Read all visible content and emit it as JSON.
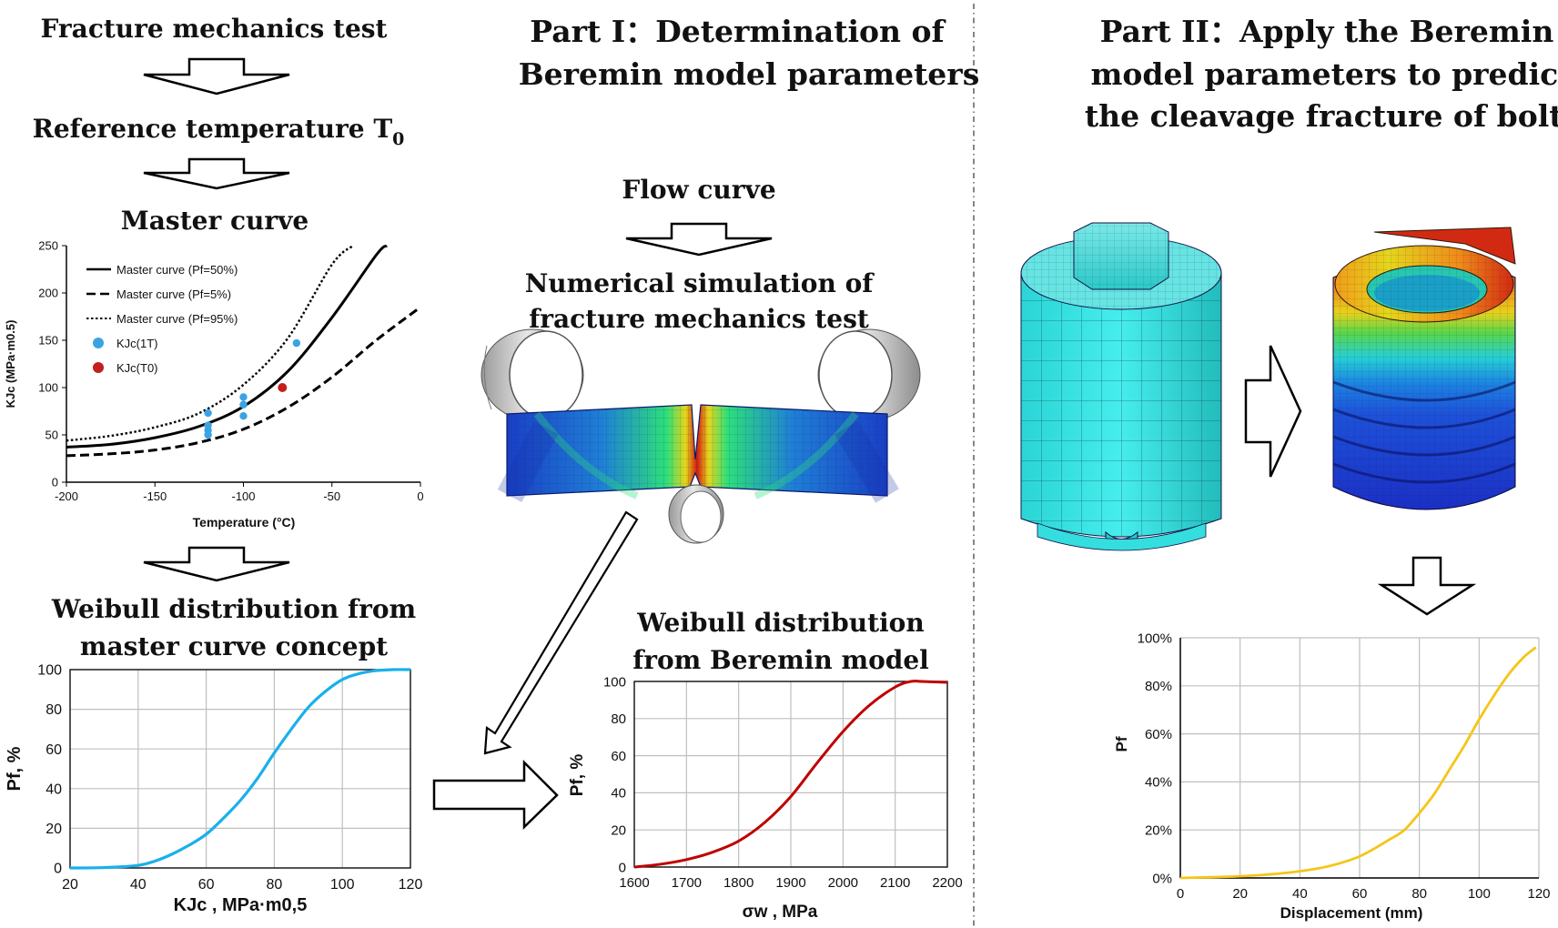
{
  "part1": {
    "title_line1": "Part I：Determination of",
    "title_line2": "Beremin model parameters"
  },
  "part2": {
    "title_line1": "Part II：Apply the Beremin",
    "title_line2": "model parameters to predict",
    "title_line3": "the cleavage fracture of bolts"
  },
  "left_flow": {
    "step1": "Fracture mechanics test",
    "step2_main": "Reference temperature T",
    "step2_sub": "0",
    "step3": "Master curve",
    "step4_line1": "Weibull distribution from",
    "step4_line2": "master curve concept"
  },
  "middle_flow": {
    "step1": "Flow curve",
    "step2_line1": "Numerical simulation of",
    "step2_line2": "fracture mechanics test",
    "step3_line1": "Weibull distribution",
    "step3_line2": "from Beremin model"
  },
  "colors": {
    "weibull_master": "#1ab0ea",
    "weibull_beremin": "#c00000",
    "bolt_curve": "#f5c518",
    "kjc_1t": "#3aa4e3",
    "kjc_t0": "#c41e1e",
    "bolt_mesh": "#34e0e0"
  },
  "chart_data": [
    {
      "type": "line",
      "xlabel": "Temperature (°C)",
      "ylabel": "KJc (MPa·m0.5)",
      "xlim": [
        -200,
        0
      ],
      "ylim": [
        0,
        250
      ],
      "xticks": [
        "-200",
        "-150",
        "-100",
        "-50",
        "0"
      ],
      "yticks": [
        "0",
        "50",
        "100",
        "150",
        "200",
        "250"
      ],
      "legend": [
        "Master curve (Pf=50%)",
        "Master curve (Pf=5%)",
        "Master curve (Pf=95%)",
        "KJc(1T)",
        "KJc(T0)"
      ],
      "series": [
        {
          "name": "Master curve (Pf=50%)",
          "x": [
            -200,
            -175,
            -150,
            -125,
            -100,
            -75,
            -50,
            -25,
            -19
          ],
          "y": [
            37,
            40,
            47,
            59,
            80,
            117,
            174,
            240,
            250
          ]
        },
        {
          "name": "Master curve (Pf=5%)",
          "x": [
            -200,
            -175,
            -150,
            -125,
            -100,
            -75,
            -50,
            -25,
            0
          ],
          "y": [
            28,
            30,
            34,
            42,
            56,
            79,
            111,
            150,
            185
          ]
        },
        {
          "name": "Master curve (Pf=95%)",
          "x": [
            -200,
            -175,
            -150,
            -125,
            -100,
            -75,
            -50,
            -38
          ],
          "y": [
            44,
            49,
            58,
            73,
            103,
            152,
            230,
            250
          ]
        },
        {
          "name": "KJc(1T)",
          "x": [
            -120,
            -120,
            -120,
            -120,
            -100,
            -100,
            -100,
            -70
          ],
          "y": [
            73,
            60,
            55,
            50,
            90,
            82,
            70,
            147
          ]
        },
        {
          "name": "KJc(T0)",
          "x": [
            -78
          ],
          "y": [
            100
          ]
        }
      ]
    },
    {
      "type": "line",
      "xlabel": "KJc , MPa·m0,5",
      "ylabel": "Pf, %",
      "xlim": [
        20,
        120
      ],
      "ylim": [
        0,
        100
      ],
      "xticks": [
        "20",
        "40",
        "60",
        "80",
        "100",
        "120"
      ],
      "yticks": [
        "0",
        "20",
        "40",
        "60",
        "80",
        "100"
      ],
      "series": [
        {
          "x": [
            20,
            30,
            40,
            45,
            50,
            55,
            60,
            65,
            70,
            75,
            80,
            85,
            90,
            95,
            100,
            105,
            110,
            115,
            120
          ],
          "y": [
            0,
            0.2,
            1.3,
            3.5,
            7,
            11.5,
            17,
            25,
            34,
            45,
            58,
            70,
            81,
            89,
            95,
            98,
            99.5,
            100,
            100
          ]
        }
      ]
    },
    {
      "type": "line",
      "xlabel": "σw , MPa",
      "ylabel": "Pf, %",
      "xlim": [
        1600,
        2200
      ],
      "ylim": [
        0,
        100
      ],
      "xticks": [
        "1600",
        "1700",
        "1800",
        "1900",
        "2000",
        "2100",
        "2200"
      ],
      "yticks": [
        "0",
        "20",
        "40",
        "60",
        "80",
        "100"
      ],
      "series": [
        {
          "x": [
            1600,
            1650,
            1700,
            1750,
            1800,
            1850,
            1900,
            1950,
            2000,
            2050,
            2100,
            2130,
            2150,
            2200
          ],
          "y": [
            0,
            1.5,
            4,
            8,
            14,
            24,
            38,
            56,
            73,
            87,
            97,
            100,
            100,
            99.5
          ]
        }
      ]
    },
    {
      "type": "line",
      "xlabel": "Displacement (mm)",
      "ylabel": "Pf",
      "xlim": [
        0,
        120
      ],
      "ylim": [
        0,
        1
      ],
      "xticks": [
        "0",
        "20",
        "40",
        "60",
        "80",
        "100",
        "120"
      ],
      "yticks": [
        "0%",
        "20%",
        "40%",
        "60%",
        "80%",
        "100%"
      ],
      "series": [
        {
          "x": [
            0,
            10,
            20,
            30,
            40,
            50,
            60,
            70,
            75,
            80,
            85,
            90,
            95,
            100,
            105,
            110,
            115,
            119
          ],
          "y": [
            0,
            0.003,
            0.007,
            0.015,
            0.028,
            0.05,
            0.09,
            0.16,
            0.2,
            0.27,
            0.35,
            0.45,
            0.55,
            0.66,
            0.76,
            0.85,
            0.92,
            0.96
          ]
        }
      ]
    }
  ]
}
